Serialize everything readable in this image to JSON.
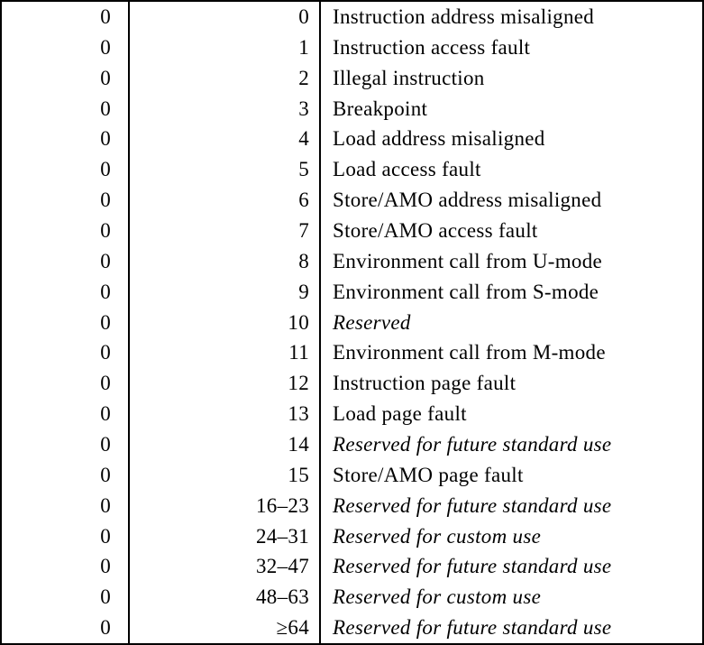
{
  "page": {
    "background": "#ffffff",
    "text_color": "#000000",
    "border_color": "#000000"
  },
  "table": {
    "name": "exception-codes-table",
    "columns": [
      "interrupt",
      "exception_code",
      "description"
    ],
    "rows": [
      {
        "interrupt": "0",
        "code": "0",
        "description": "Instruction address misaligned",
        "italic": false
      },
      {
        "interrupt": "0",
        "code": "1",
        "description": "Instruction access fault",
        "italic": false
      },
      {
        "interrupt": "0",
        "code": "2",
        "description": "Illegal instruction",
        "italic": false
      },
      {
        "interrupt": "0",
        "code": "3",
        "description": "Breakpoint",
        "italic": false
      },
      {
        "interrupt": "0",
        "code": "4",
        "description": "Load address misaligned",
        "italic": false
      },
      {
        "interrupt": "0",
        "code": "5",
        "description": "Load access fault",
        "italic": false
      },
      {
        "interrupt": "0",
        "code": "6",
        "description": "Store/AMO address misaligned",
        "italic": false
      },
      {
        "interrupt": "0",
        "code": "7",
        "description": "Store/AMO access fault",
        "italic": false
      },
      {
        "interrupt": "0",
        "code": "8",
        "description": "Environment call from U-mode",
        "italic": false
      },
      {
        "interrupt": "0",
        "code": "9",
        "description": "Environment call from S-mode",
        "italic": false
      },
      {
        "interrupt": "0",
        "code": "10",
        "description": "Reserved",
        "italic": true
      },
      {
        "interrupt": "0",
        "code": "11",
        "description": "Environment call from M-mode",
        "italic": false
      },
      {
        "interrupt": "0",
        "code": "12",
        "description": "Instruction page fault",
        "italic": false
      },
      {
        "interrupt": "0",
        "code": "13",
        "description": "Load page fault",
        "italic": false
      },
      {
        "interrupt": "0",
        "code": "14",
        "description": "Reserved for future standard use",
        "italic": true
      },
      {
        "interrupt": "0",
        "code": "15",
        "description": "Store/AMO page fault",
        "italic": false
      },
      {
        "interrupt": "0",
        "code": "16–23",
        "description": "Reserved for future standard use",
        "italic": true
      },
      {
        "interrupt": "0",
        "code": "24–31",
        "description": "Reserved for custom use",
        "italic": true
      },
      {
        "interrupt": "0",
        "code": "32–47",
        "description": "Reserved for future standard use",
        "italic": true
      },
      {
        "interrupt": "0",
        "code": "48–63",
        "description": "Reserved for custom use",
        "italic": true
      },
      {
        "interrupt": "0",
        "code": "≥64",
        "description": "Reserved for future standard use",
        "italic": true
      }
    ]
  }
}
